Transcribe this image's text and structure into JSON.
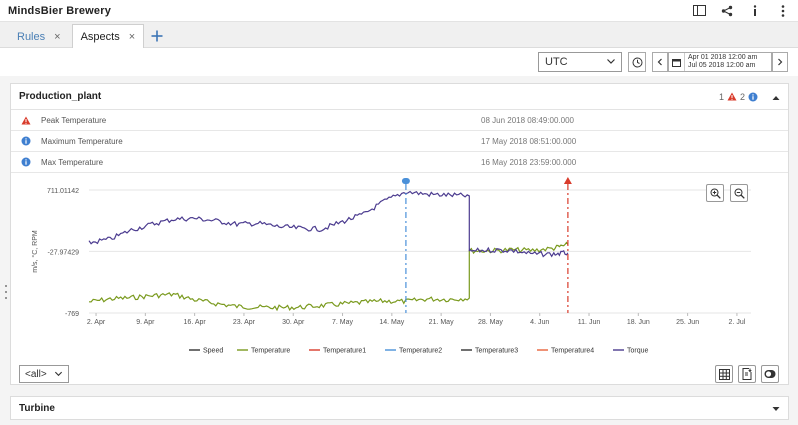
{
  "app": {
    "title": "MindsBier Brewery"
  },
  "tabs": [
    {
      "label": "Rules",
      "active": false
    },
    {
      "label": "Aspects",
      "active": true
    }
  ],
  "toolbar": {
    "timezone": "UTC",
    "date_from": "Apr 01 2018 12:00 am",
    "date_to": "Jul 05 2018 12:00 am"
  },
  "panel": {
    "title": "Production_plant",
    "warning_count": "1",
    "info_count": "2",
    "events": [
      {
        "type": "warning",
        "name": "Peak Temperature",
        "time": "08 Jun 2018 08:49:00.000"
      },
      {
        "type": "info",
        "name": "Maximum Temperature",
        "time": "17 May 2018 08:51:00.000"
      },
      {
        "type": "info",
        "name": "Max Temperature",
        "time": "16 May 2018 23:59:00.000"
      }
    ],
    "aspect_filter": "<all>"
  },
  "chart_data": {
    "type": "line",
    "ylabel": "m/s, °C, RPM",
    "yticks": [
      "711.01142",
      "-27.97429",
      "-769"
    ],
    "yvalues": [
      711.01142,
      -27.97429,
      -769
    ],
    "ylim": [
      -769,
      711.01142
    ],
    "xticks": [
      "2. Apr",
      "9. Apr",
      "16. Apr",
      "23. Apr",
      "30. Apr",
      "7. May",
      "14. May",
      "21. May",
      "28. May",
      "4. Jun",
      "11. Jun",
      "18. Jun",
      "25. Jun",
      "2. Jul"
    ],
    "xlim": [
      "2018-04-01",
      "2018-07-04"
    ],
    "grid": true,
    "legend_position": "bottom",
    "series": [
      {
        "name": "Speed",
        "color": "#333333",
        "values": []
      },
      {
        "name": "Temperature",
        "color": "#7a9a1e",
        "x": [
          "2018-04-01",
          "2018-04-04",
          "2018-04-07",
          "2018-04-10",
          "2018-04-13",
          "2018-04-16",
          "2018-04-19",
          "2018-04-22",
          "2018-04-25",
          "2018-04-28",
          "2018-05-01",
          "2018-05-04",
          "2018-05-07",
          "2018-05-10",
          "2018-05-13",
          "2018-05-16",
          "2018-05-19",
          "2018-05-22",
          "2018-05-25",
          "2018-05-25",
          "2018-05-28",
          "2018-05-31",
          "2018-06-03",
          "2018-06-06",
          "2018-06-08"
        ],
        "values": [
          -635,
          -600,
          -585,
          -560,
          -545,
          -610,
          -655,
          -690,
          -700,
          -705,
          -700,
          -680,
          -660,
          -640,
          -625,
          -630,
          -600,
          -605,
          -590,
          -20,
          -20,
          -10,
          -15,
          10,
          55
        ]
      },
      {
        "name": "Temperature1",
        "color": "#d93b2b",
        "values": []
      },
      {
        "name": "Temperature2",
        "color": "#4a90d9",
        "values": []
      },
      {
        "name": "Temperature3",
        "color": "#333333",
        "values": []
      },
      {
        "name": "Temperature4",
        "color": "#e8623a",
        "values": []
      },
      {
        "name": "Torque",
        "color": "#4b3b8f",
        "x": [
          "2018-04-01",
          "2018-04-04",
          "2018-04-07",
          "2018-04-10",
          "2018-04-13",
          "2018-04-16",
          "2018-04-19",
          "2018-04-22",
          "2018-04-25",
          "2018-04-28",
          "2018-05-01",
          "2018-05-04",
          "2018-05-07",
          "2018-05-10",
          "2018-05-13",
          "2018-05-16",
          "2018-05-19",
          "2018-05-22",
          "2018-05-25",
          "2018-05-25",
          "2018-05-28",
          "2018-05-31",
          "2018-06-03",
          "2018-06-06",
          "2018-06-08"
        ],
        "values": [
          75,
          120,
          230,
          300,
          360,
          370,
          340,
          300,
          310,
          270,
          250,
          240,
          330,
          420,
          580,
          690,
          660,
          650,
          640,
          -25,
          -10,
          -15,
          -60,
          -60,
          -45
        ]
      }
    ],
    "markers": [
      {
        "series": "Temperature2",
        "x": "2018-05-16",
        "kind": "info"
      },
      {
        "series": "Temperature1",
        "x": "2018-06-08",
        "kind": "warning"
      }
    ]
  },
  "panel2": {
    "title": "Turbine"
  },
  "icons": {
    "warning": "warning-triangle-icon",
    "info": "info-circle-icon"
  }
}
